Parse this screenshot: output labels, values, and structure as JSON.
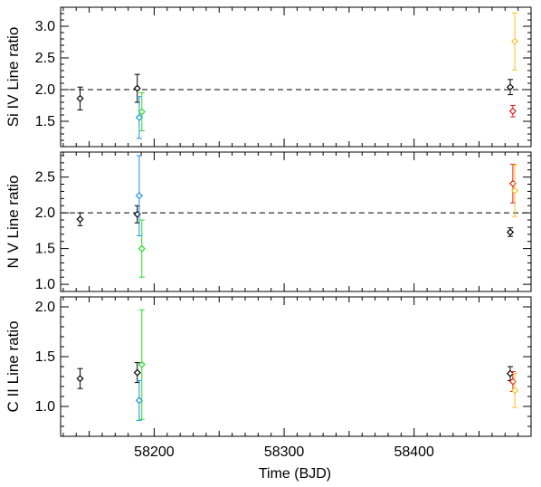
{
  "chart_data": [
    {
      "type": "scatter",
      "ylabel": "Si IV Line ratio",
      "ylim": [
        1.1,
        3.3
      ],
      "yticks": [
        1.5,
        2.0,
        2.5,
        3.0
      ],
      "ytick_labels": [
        "1.5",
        "2.0",
        "2.5",
        "3.0"
      ],
      "reference_line": 2.0,
      "points": [
        {
          "x": 58143,
          "y": 1.86,
          "err": 0.18,
          "color": "#000000"
        },
        {
          "x": 58187,
          "y": 2.02,
          "err": 0.22,
          "color": "#000000"
        },
        {
          "x": 58188.5,
          "y": 1.56,
          "err": 0.33,
          "color": "#1f8fe6"
        },
        {
          "x": 58190.5,
          "y": 1.65,
          "err": 0.3,
          "color": "#22e022"
        },
        {
          "x": 58474,
          "y": 2.04,
          "err": 0.12,
          "color": "#000000"
        },
        {
          "x": 58476,
          "y": 1.66,
          "err": 0.09,
          "color": "#e02020"
        },
        {
          "x": 58477.5,
          "y": 2.76,
          "err": 0.45,
          "color": "#f5c22a"
        }
      ]
    },
    {
      "type": "scatter",
      "ylabel": "N V Line ratio",
      "ylim": [
        0.9,
        2.85
      ],
      "yticks": [
        1.0,
        1.5,
        2.0,
        2.5
      ],
      "ytick_labels": [
        "1.0",
        "1.5",
        "2.0",
        "2.5"
      ],
      "reference_line": 2.0,
      "points": [
        {
          "x": 58143,
          "y": 1.91,
          "err": 0.09,
          "color": "#000000"
        },
        {
          "x": 58187,
          "y": 1.98,
          "err": 0.12,
          "color": "#000000"
        },
        {
          "x": 58188.5,
          "y": 2.24,
          "err": 0.56,
          "color": "#1f8fe6"
        },
        {
          "x": 58190.5,
          "y": 1.5,
          "err": 0.4,
          "color": "#22e022"
        },
        {
          "x": 58474,
          "y": 1.73,
          "err": 0.06,
          "color": "#000000"
        },
        {
          "x": 58476,
          "y": 2.41,
          "err": 0.27,
          "color": "#e02020"
        },
        {
          "x": 58477.5,
          "y": 2.31,
          "err": 0.36,
          "color": "#f5c22a"
        }
      ]
    },
    {
      "type": "scatter",
      "ylabel": "C II Line ratio",
      "ylim": [
        0.7,
        2.1
      ],
      "yticks": [
        1.0,
        1.5,
        2.0
      ],
      "ytick_labels": [
        "1.0",
        "1.5",
        "2.0"
      ],
      "points": [
        {
          "x": 58143,
          "y": 1.28,
          "err": 0.1,
          "color": "#000000"
        },
        {
          "x": 58187,
          "y": 1.34,
          "err": 0.1,
          "color": "#000000"
        },
        {
          "x": 58188.5,
          "y": 1.06,
          "err": 0.2,
          "color": "#1f8fe6"
        },
        {
          "x": 58190.5,
          "y": 1.42,
          "err": 0.55,
          "color": "#22e022"
        },
        {
          "x": 58474,
          "y": 1.33,
          "err": 0.07,
          "color": "#000000"
        },
        {
          "x": 58476,
          "y": 1.25,
          "err": 0.1,
          "color": "#e02020"
        },
        {
          "x": 58477.5,
          "y": 1.16,
          "err": 0.17,
          "color": "#f5c22a"
        }
      ]
    }
  ],
  "x_axis": {
    "label": "Time (BJD)",
    "xlim": [
      58128,
      58490
    ],
    "ticks": [
      58200,
      58300,
      58400
    ],
    "tick_labels": [
      "58200",
      "58300",
      "58400"
    ],
    "minor_step": 10
  }
}
